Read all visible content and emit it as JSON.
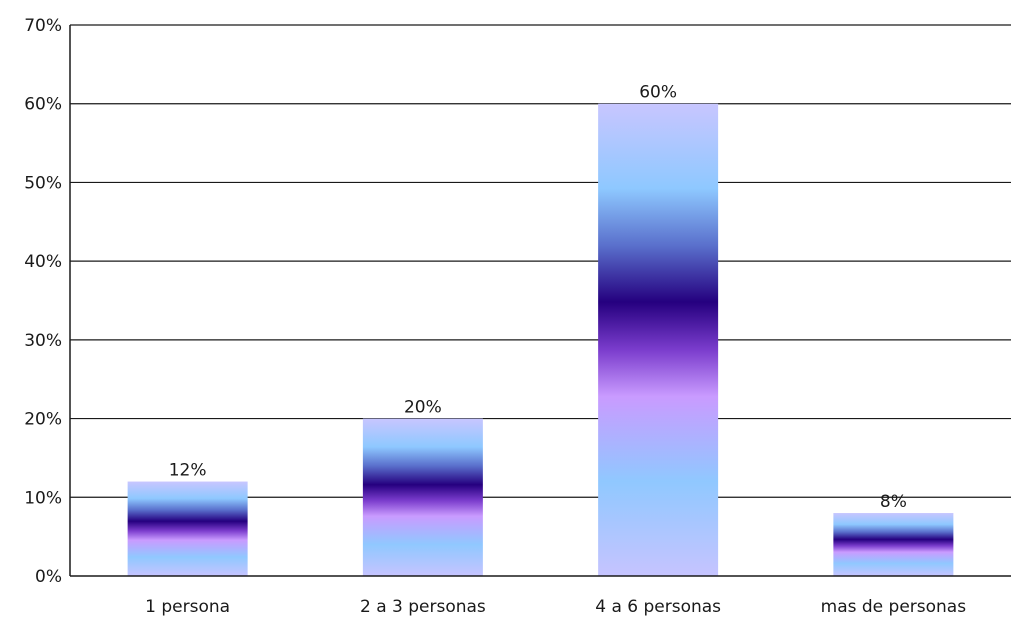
{
  "chart_data": {
    "type": "bar",
    "title": "",
    "xlabel": "",
    "ylabel": "",
    "categories": [
      "1 persona",
      "2 a 3 personas",
      "4 a 6 personas",
      "mas de personas"
    ],
    "values": [
      12,
      20,
      60,
      8
    ],
    "data_labels": [
      "12%",
      "20%",
      "60%",
      "8%"
    ],
    "ylim": [
      0,
      70
    ],
    "yticks": [
      0,
      10,
      20,
      30,
      40,
      50,
      60,
      70
    ],
    "ytick_labels": [
      "0%",
      "10%",
      "20%",
      "30%",
      "40%",
      "50%",
      "60%",
      "70%"
    ],
    "grid": true,
    "legend": "none",
    "bar_gradient_colors": [
      "#c4c4ff",
      "#8cc8ff",
      "#2a0080",
      "#c89cff",
      "#8cc8ff",
      "#c4c4ff"
    ],
    "axis_color": "#1a1a1a",
    "grid_color": "#1a1a1a"
  }
}
